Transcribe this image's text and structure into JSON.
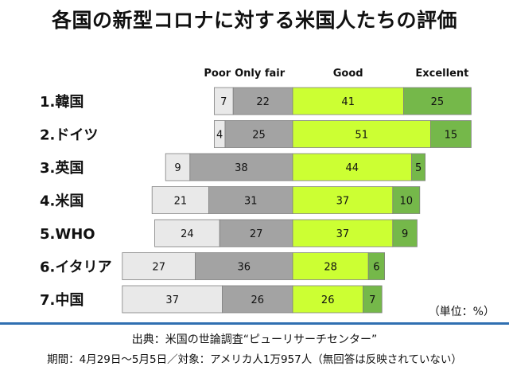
{
  "title": "各国の新型コロナに対する米国人たちの評価",
  "unit_note": "（単位：%）",
  "source": "出典：米国の世論調査“ピューリサーチセンター”",
  "period": "期間：4月29日～5月5日／対象：アメリカ人1万957人（無回答は反映されていない）",
  "chart_data": {
    "type": "bar",
    "stacked": "diverging",
    "title": "各国の新型コロナに対する米国人たちの評価",
    "categories": [
      "1.韓国",
      "2.ドイツ",
      "3.英国",
      "4.米国",
      "5.WHO",
      "6.イタリア",
      "7.中国"
    ],
    "series": [
      {
        "name": "Poor",
        "color": "#e9e9e9",
        "values": [
          7,
          4,
          9,
          21,
          24,
          27,
          37
        ]
      },
      {
        "name": "Only fair",
        "color": "#a3a3a3",
        "values": [
          22,
          25,
          38,
          31,
          27,
          36,
          26
        ]
      },
      {
        "name": "Good",
        "color": "#ccff33",
        "values": [
          41,
          51,
          44,
          37,
          37,
          28,
          26
        ]
      },
      {
        "name": "Excellent",
        "color": "#75b84a",
        "values": [
          25,
          15,
          5,
          10,
          9,
          6,
          7
        ]
      }
    ],
    "unit": "%"
  }
}
